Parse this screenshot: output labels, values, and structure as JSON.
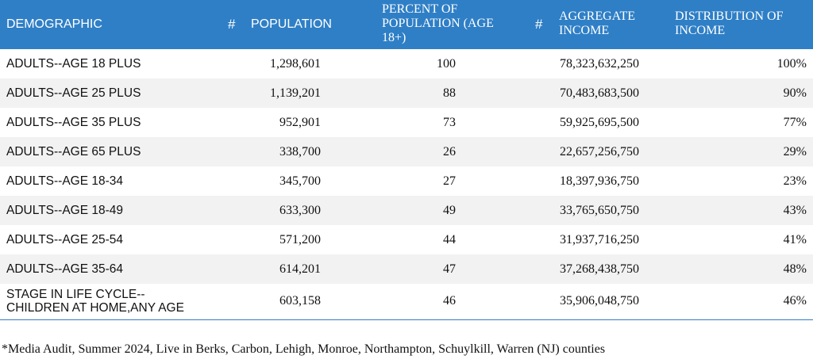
{
  "header": {
    "demographic": "DEMOGRAPHIC",
    "hash1": "#",
    "population": "POPULATION",
    "percent_line1": "PERCENT OF",
    "percent_line2": "POPULATION (AGE",
    "percent_line3": "18+)",
    "hash2": "#",
    "aggregate_line1": "AGGREGATE",
    "aggregate_line2": "INCOME",
    "distribution_line1": "DISTRIBUTION OF",
    "distribution_line2": "INCOME"
  },
  "rows": [
    {
      "demographic": "ADULTS--AGE 18 PLUS",
      "population": "1,298,601",
      "percent": "100",
      "aggregate": "78,323,632,250",
      "distribution": "100%"
    },
    {
      "demographic": "ADULTS--AGE 25 PLUS",
      "population": "1,139,201",
      "percent": "88",
      "aggregate": "70,483,683,500",
      "distribution": "90%"
    },
    {
      "demographic": "ADULTS--AGE 35 PLUS",
      "population": "952,901",
      "percent": "73",
      "aggregate": "59,925,695,500",
      "distribution": "77%"
    },
    {
      "demographic": "ADULTS--AGE 65 PLUS",
      "population": "338,700",
      "percent": "26",
      "aggregate": "22,657,256,750",
      "distribution": "29%"
    },
    {
      "demographic": "ADULTS--AGE 18-34",
      "population": "345,700",
      "percent": "27",
      "aggregate": "18,397,936,750",
      "distribution": "23%"
    },
    {
      "demographic": "ADULTS--AGE 18-49",
      "population": "633,300",
      "percent": "49",
      "aggregate": "33,765,650,750",
      "distribution": "43%"
    },
    {
      "demographic": "ADULTS--AGE 25-54",
      "population": "571,200",
      "percent": "44",
      "aggregate": "31,937,716,250",
      "distribution": "41%"
    },
    {
      "demographic": "ADULTS--AGE 35-64",
      "population": "614,201",
      "percent": "47",
      "aggregate": "37,268,438,750",
      "distribution": "48%"
    },
    {
      "demographic_line1": "STAGE IN LIFE CYCLE--",
      "demographic_line2": "CHILDREN AT HOME,ANY AGE",
      "population": "603,158",
      "percent": "46",
      "aggregate": "35,906,048,750",
      "distribution": "46%"
    }
  ],
  "footnote": "*Media Audit, Summer 2024, Live in Berks, Carbon, Lehigh, Monroe, Northampton, Schuylkill, Warren (NJ) counties",
  "colors": {
    "header_bg": "#2f7fc6",
    "stripe": "#f2f2f2"
  }
}
